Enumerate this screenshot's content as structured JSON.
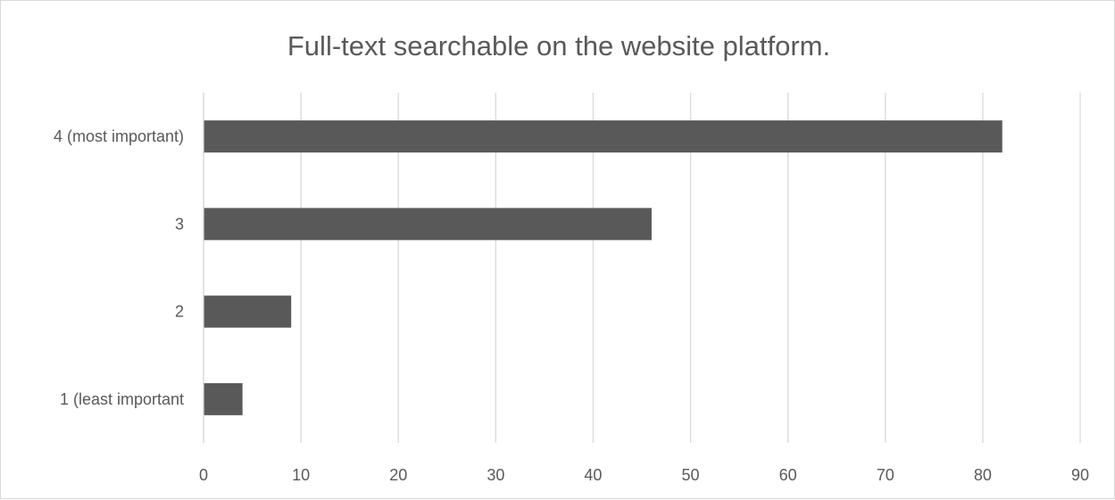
{
  "chart_data": {
    "type": "bar",
    "orientation": "horizontal",
    "title": "Full-text searchable on the website platform.",
    "xlabel": "",
    "ylabel": "",
    "categories": [
      "4 (most important)",
      "3",
      "2",
      "1 (least important"
    ],
    "values": [
      82,
      46,
      9,
      4
    ],
    "xlim": [
      0,
      90
    ],
    "x_ticks": [
      0,
      10,
      20,
      30,
      40,
      50,
      60,
      70,
      80,
      90
    ],
    "grid": "vertical",
    "legend": "none",
    "bar_color": "#595959",
    "grid_color": "#d9d9d9"
  }
}
